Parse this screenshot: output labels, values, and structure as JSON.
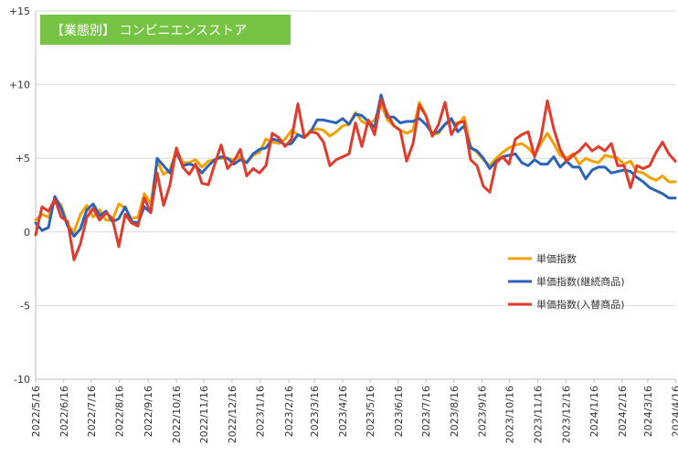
{
  "chart_data": {
    "type": "line",
    "title": "【業態別】 コンビニエンスストア",
    "title_bg_color": "#77c344",
    "grid": "horizontal",
    "legend_position": "right-middle",
    "ylim": [
      -10,
      15
    ],
    "ytick_values": [
      15,
      10,
      5,
      0,
      -5,
      -10
    ],
    "ytick_labels": [
      "+15",
      "+10",
      "+5",
      "0",
      "-5",
      "-10"
    ],
    "x_tick_labels": [
      "2022/5/16",
      "2022/6/16",
      "2022/7/16",
      "2022/8/16",
      "2022/9/16",
      "2022/10/16",
      "2022/11/16",
      "2022/12/16",
      "2023/1/16",
      "2023/2/16",
      "2023/3/16",
      "2023/4/16",
      "2023/5/16",
      "2023/6/16",
      "2023/7/16",
      "2023/8/16",
      "2023/9/16",
      "2023/10/16",
      "2023/11/16",
      "2023/12/16",
      "2024/1/16",
      "2024/2/16",
      "2024/3/16",
      "2024/4/16"
    ],
    "x_tick_indices": [
      0,
      4.4,
      8.7,
      13.1,
      17.6,
      22,
      26.3,
      30.7,
      35.1,
      39.6,
      43.6,
      48,
      52.3,
      56.7,
      61,
      65.4,
      69.8,
      74.1,
      78.5,
      82.9,
      87.3,
      91.7,
      95.7,
      100.1
    ],
    "series": [
      {
        "name": "単価指数",
        "color": "#f5a000",
        "values": [
          0.8,
          1.2,
          1.0,
          2.3,
          1.8,
          0.5,
          0.0,
          1.2,
          1.8,
          1.0,
          1.5,
          0.8,
          0.8,
          1.9,
          1.6,
          0.9,
          1.0,
          2.6,
          1.9,
          4.8,
          3.9,
          4.2,
          5.6,
          4.7,
          4.7,
          4.9,
          4.4,
          4.8,
          4.9,
          5.0,
          5.0,
          4.9,
          5.1,
          4.7,
          5.2,
          5.4,
          6.3,
          6.1,
          6.0,
          6.3,
          6.9,
          6.6,
          6.4,
          6.9,
          7.0,
          6.9,
          6.5,
          6.8,
          7.2,
          7.3,
          8.1,
          7.5,
          7.3,
          7.6,
          8.7,
          7.6,
          7.2,
          6.9,
          6.7,
          6.9,
          8.8,
          7.9,
          6.6,
          6.7,
          7.3,
          7.5,
          7.3,
          7.8,
          5.8,
          5.4,
          4.9,
          4.5,
          5.0,
          5.4,
          5.7,
          5.9,
          6.0,
          5.7,
          5.2,
          6.0,
          6.7,
          6.0,
          5.2,
          5.0,
          5.3,
          4.6,
          5.0,
          4.8,
          4.7,
          5.2,
          5.1,
          5.0,
          4.6,
          4.8,
          4.1,
          4.0,
          3.7,
          3.5,
          3.8,
          3.4,
          3.4
        ]
      },
      {
        "name": "単価指数(継続商品)",
        "color": "#2a62b8",
        "values": [
          0.6,
          0.1,
          0.3,
          2.4,
          1.6,
          0.4,
          -0.3,
          0.2,
          1.5,
          1.9,
          1.1,
          1.4,
          0.7,
          0.9,
          1.7,
          0.7,
          0.6,
          1.7,
          1.3,
          5.0,
          4.5,
          4.0,
          5.4,
          4.5,
          4.6,
          4.5,
          4.0,
          4.5,
          4.9,
          5.1,
          5.0,
          4.6,
          4.9,
          4.7,
          5.3,
          5.6,
          5.7,
          6.3,
          6.2,
          5.9,
          6.0,
          6.6,
          6.4,
          6.8,
          7.6,
          7.6,
          7.5,
          7.4,
          7.7,
          7.3,
          8.0,
          7.9,
          7.5,
          7.1,
          9.3,
          7.8,
          7.8,
          7.4,
          7.5,
          7.5,
          7.7,
          7.3,
          6.7,
          6.8,
          7.3,
          7.7,
          6.8,
          7.2,
          5.7,
          5.5,
          5.0,
          4.3,
          4.8,
          5.1,
          5.2,
          5.3,
          4.7,
          4.5,
          4.9,
          4.6,
          4.6,
          5.1,
          4.4,
          4.8,
          4.4,
          4.4,
          3.6,
          4.2,
          4.4,
          4.4,
          4.0,
          4.1,
          4.2,
          4.1,
          3.7,
          3.4,
          3.0,
          2.8,
          2.6,
          2.3,
          2.3
        ]
      },
      {
        "name": "単価指数(入替商品)",
        "color": "#e23a2b",
        "values": [
          -0.2,
          1.7,
          1.4,
          2.2,
          1.0,
          0.7,
          -1.9,
          -0.8,
          1.0,
          1.6,
          0.8,
          1.3,
          0.9,
          -1.0,
          1.2,
          0.6,
          0.4,
          2.3,
          1.3,
          4.0,
          1.8,
          3.2,
          5.7,
          4.4,
          3.9,
          4.6,
          3.3,
          3.2,
          4.6,
          5.9,
          4.3,
          4.8,
          5.6,
          3.8,
          4.3,
          4.0,
          4.5,
          6.7,
          6.4,
          5.8,
          6.3,
          8.7,
          6.4,
          6.8,
          6.7,
          6.1,
          4.5,
          4.9,
          5.1,
          5.3,
          7.4,
          5.8,
          7.6,
          6.6,
          9.0,
          8.0,
          7.2,
          6.9,
          4.8,
          6.0,
          8.6,
          7.9,
          6.5,
          7.3,
          8.8,
          6.6,
          7.4,
          7.5,
          4.9,
          4.5,
          3.1,
          2.7,
          4.7,
          5.1,
          4.6,
          6.3,
          6.6,
          6.8,
          5.1,
          6.4,
          8.9,
          7.0,
          5.6,
          4.8,
          5.2,
          5.5,
          6.0,
          5.5,
          5.8,
          5.5,
          6.0,
          4.5,
          4.5,
          3.0,
          4.5,
          4.3,
          4.5,
          5.4,
          6.1,
          5.3,
          4.8
        ]
      }
    ]
  }
}
